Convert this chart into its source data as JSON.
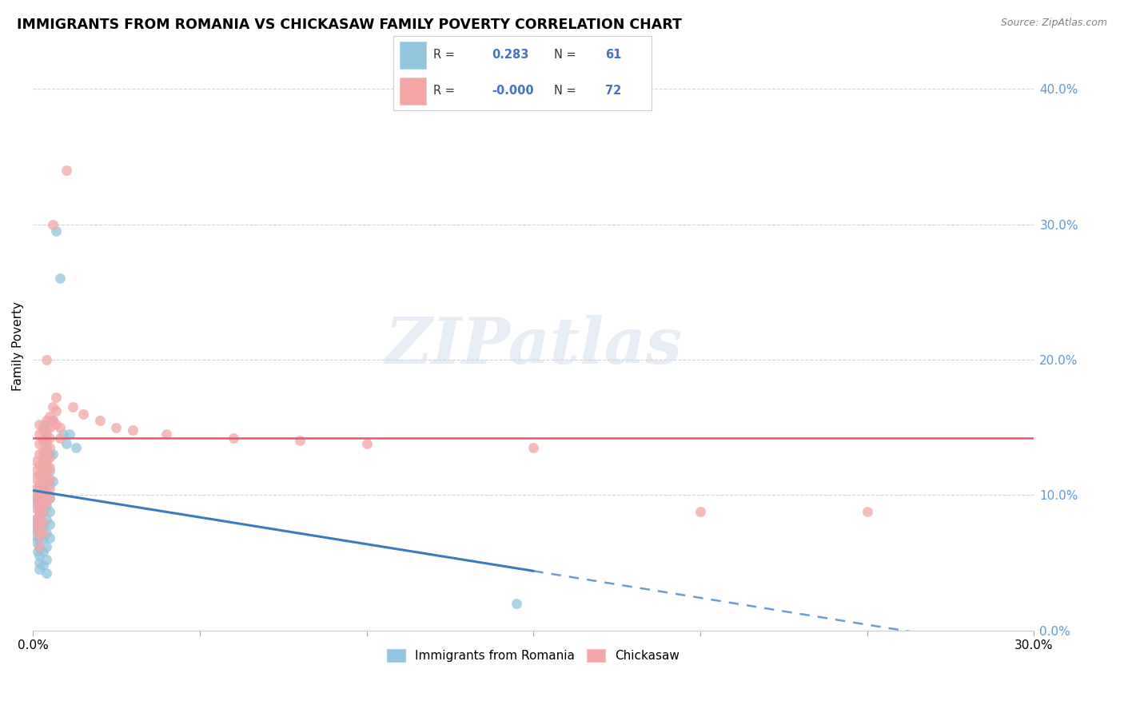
{
  "title": "IMMIGRANTS FROM ROMANIA VS CHICKASAW FAMILY POVERTY CORRELATION CHART",
  "source": "Source: ZipAtlas.com",
  "ylabel": "Family Poverty",
  "xlim": [
    0.0,
    0.3
  ],
  "ylim": [
    0.0,
    0.42
  ],
  "yticks": [
    0.0,
    0.1,
    0.2,
    0.3,
    0.4
  ],
  "xtick_positions": [
    0.0,
    0.05,
    0.1,
    0.15,
    0.2,
    0.25,
    0.3
  ],
  "legend_labels": [
    "Immigrants from Romania",
    "Chickasaw"
  ],
  "blue_color": "#92c5de",
  "pink_color": "#f4a6a6",
  "trend_blue_color": "#3a7dbf",
  "trend_pink_color": "#e05a6a",
  "watermark": "ZIPatlas",
  "romania_points": [
    [
      0.0005,
      0.082
    ],
    [
      0.0008,
      0.076
    ],
    [
      0.001,
      0.07
    ],
    [
      0.001,
      0.065
    ],
    [
      0.001,
      0.095
    ],
    [
      0.0012,
      0.1
    ],
    [
      0.0015,
      0.098
    ],
    [
      0.0015,
      0.058
    ],
    [
      0.0018,
      0.088
    ],
    [
      0.002,
      0.115
    ],
    [
      0.002,
      0.105
    ],
    [
      0.002,
      0.092
    ],
    [
      0.002,
      0.085
    ],
    [
      0.002,
      0.08
    ],
    [
      0.002,
      0.075
    ],
    [
      0.002,
      0.068
    ],
    [
      0.002,
      0.062
    ],
    [
      0.002,
      0.055
    ],
    [
      0.002,
      0.05
    ],
    [
      0.002,
      0.045
    ],
    [
      0.0025,
      0.12
    ],
    [
      0.003,
      0.15
    ],
    [
      0.003,
      0.14
    ],
    [
      0.003,
      0.128
    ],
    [
      0.003,
      0.118
    ],
    [
      0.003,
      0.108
    ],
    [
      0.003,
      0.098
    ],
    [
      0.003,
      0.088
    ],
    [
      0.003,
      0.078
    ],
    [
      0.003,
      0.068
    ],
    [
      0.003,
      0.058
    ],
    [
      0.003,
      0.048
    ],
    [
      0.0035,
      0.152
    ],
    [
      0.004,
      0.145
    ],
    [
      0.004,
      0.135
    ],
    [
      0.004,
      0.122
    ],
    [
      0.004,
      0.112
    ],
    [
      0.004,
      0.102
    ],
    [
      0.004,
      0.092
    ],
    [
      0.004,
      0.082
    ],
    [
      0.004,
      0.072
    ],
    [
      0.004,
      0.062
    ],
    [
      0.004,
      0.052
    ],
    [
      0.004,
      0.042
    ],
    [
      0.005,
      0.13
    ],
    [
      0.005,
      0.118
    ],
    [
      0.005,
      0.108
    ],
    [
      0.005,
      0.098
    ],
    [
      0.005,
      0.088
    ],
    [
      0.005,
      0.078
    ],
    [
      0.005,
      0.068
    ],
    [
      0.006,
      0.155
    ],
    [
      0.006,
      0.13
    ],
    [
      0.006,
      0.11
    ],
    [
      0.007,
      0.295
    ],
    [
      0.008,
      0.26
    ],
    [
      0.009,
      0.145
    ],
    [
      0.01,
      0.138
    ],
    [
      0.011,
      0.145
    ],
    [
      0.013,
      0.135
    ],
    [
      0.145,
      0.02
    ]
  ],
  "chickasaw_points": [
    [
      0.001,
      0.125
    ],
    [
      0.001,
      0.118
    ],
    [
      0.001,
      0.112
    ],
    [
      0.001,
      0.105
    ],
    [
      0.001,
      0.098
    ],
    [
      0.001,
      0.09
    ],
    [
      0.001,
      0.082
    ],
    [
      0.001,
      0.075
    ],
    [
      0.002,
      0.152
    ],
    [
      0.002,
      0.145
    ],
    [
      0.002,
      0.138
    ],
    [
      0.002,
      0.13
    ],
    [
      0.002,
      0.122
    ],
    [
      0.002,
      0.115
    ],
    [
      0.002,
      0.108
    ],
    [
      0.002,
      0.1
    ],
    [
      0.002,
      0.092
    ],
    [
      0.002,
      0.085
    ],
    [
      0.002,
      0.078
    ],
    [
      0.002,
      0.07
    ],
    [
      0.002,
      0.062
    ],
    [
      0.003,
      0.148
    ],
    [
      0.003,
      0.14
    ],
    [
      0.003,
      0.132
    ],
    [
      0.003,
      0.125
    ],
    [
      0.003,
      0.118
    ],
    [
      0.003,
      0.11
    ],
    [
      0.003,
      0.102
    ],
    [
      0.003,
      0.095
    ],
    [
      0.003,
      0.088
    ],
    [
      0.003,
      0.08
    ],
    [
      0.003,
      0.072
    ],
    [
      0.004,
      0.2
    ],
    [
      0.004,
      0.155
    ],
    [
      0.004,
      0.148
    ],
    [
      0.004,
      0.14
    ],
    [
      0.004,
      0.132
    ],
    [
      0.004,
      0.125
    ],
    [
      0.004,
      0.118
    ],
    [
      0.004,
      0.11
    ],
    [
      0.004,
      0.102
    ],
    [
      0.004,
      0.095
    ],
    [
      0.005,
      0.158
    ],
    [
      0.005,
      0.15
    ],
    [
      0.005,
      0.142
    ],
    [
      0.005,
      0.135
    ],
    [
      0.005,
      0.128
    ],
    [
      0.005,
      0.12
    ],
    [
      0.005,
      0.112
    ],
    [
      0.005,
      0.105
    ],
    [
      0.005,
      0.098
    ],
    [
      0.006,
      0.3
    ],
    [
      0.006,
      0.165
    ],
    [
      0.006,
      0.155
    ],
    [
      0.007,
      0.172
    ],
    [
      0.007,
      0.162
    ],
    [
      0.007,
      0.152
    ],
    [
      0.008,
      0.15
    ],
    [
      0.008,
      0.142
    ],
    [
      0.01,
      0.34
    ],
    [
      0.012,
      0.165
    ],
    [
      0.015,
      0.16
    ],
    [
      0.02,
      0.155
    ],
    [
      0.025,
      0.15
    ],
    [
      0.03,
      0.148
    ],
    [
      0.04,
      0.145
    ],
    [
      0.06,
      0.142
    ],
    [
      0.08,
      0.14
    ],
    [
      0.1,
      0.138
    ],
    [
      0.15,
      0.135
    ],
    [
      0.2,
      0.088
    ],
    [
      0.25,
      0.088
    ]
  ],
  "trend_solid_end": 0.15,
  "pink_trend_y": 0.142
}
